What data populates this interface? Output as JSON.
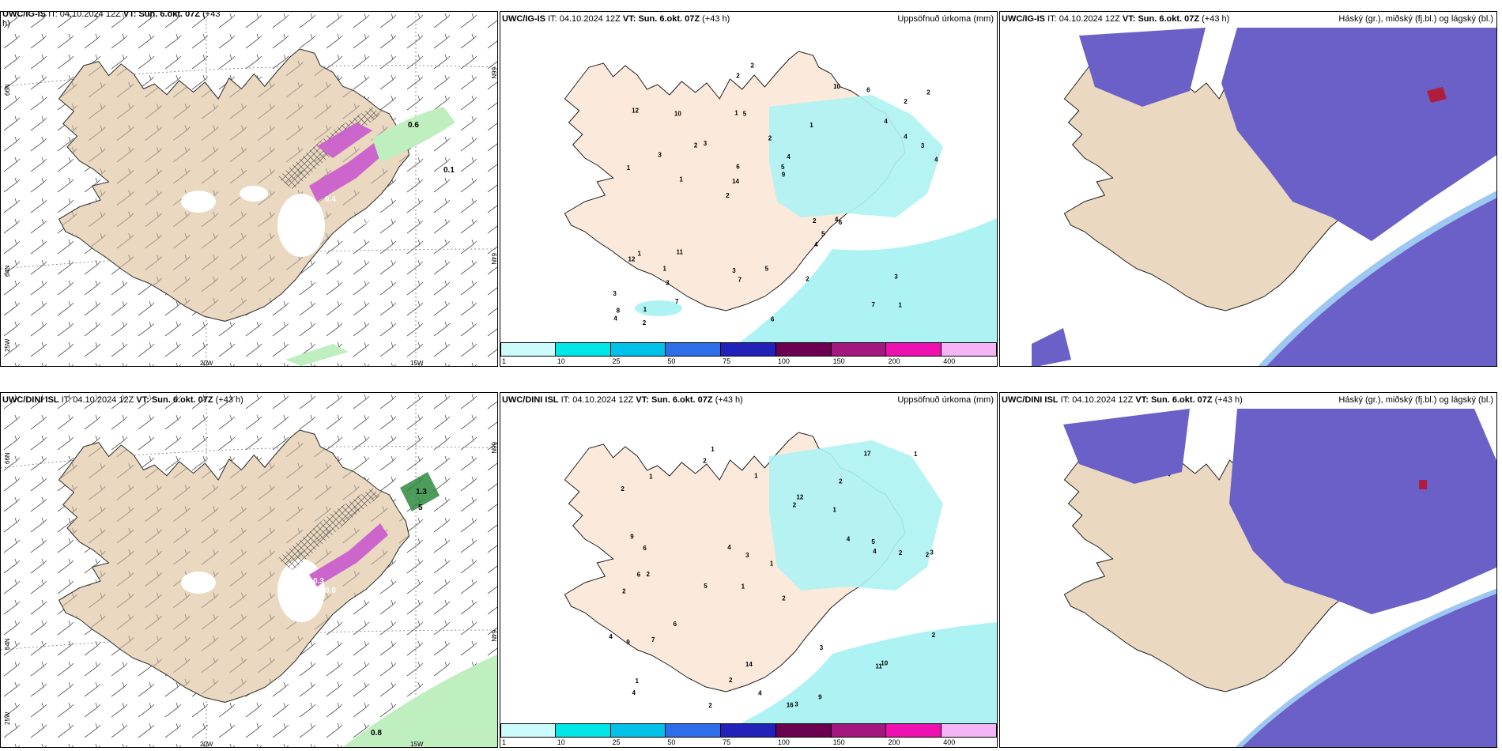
{
  "colors": {
    "land": "#ead8c0",
    "land_light": "#fbeadb",
    "precip_cyan": "#aef3f3",
    "cloud_high": "#6a60c8",
    "cloud_mid": "#4d7fe3",
    "cloud_low": "#9ec8f2",
    "purple": "#cc66cc",
    "green": "#bfeebf"
  },
  "colorbar": {
    "colors": [
      "#ccfbfb",
      "#00e5e5",
      "#00c2e8",
      "#2e6ee8",
      "#2222bb",
      "#6b0050",
      "#a3177e",
      "#ee10b0",
      "#f5b4f5"
    ],
    "ticks": [
      "1",
      "10",
      "25",
      "50",
      "75",
      "100",
      "150",
      "200",
      "400"
    ]
  },
  "panels": {
    "ig_wind": {
      "model": "UWC/IG-IS",
      "it_label": "IT:",
      "it_value": "04.10.2024 12Z",
      "vt_label": "VT: Sun. 6.okt. 07Z",
      "lead": "(+43",
      "lead2": "h)",
      "labels": [
        {
          "t": "0.6",
          "c": "#000"
        },
        {
          "t": "0.4",
          "c": "#fff"
        },
        {
          "t": "0.4",
          "c": "#fff"
        },
        {
          "t": "0.1",
          "c": "#000"
        }
      ],
      "axis": {
        "lat66": "66N",
        "lat64": "64N",
        "lat66r": "66N",
        "lat64r": "64N",
        "lon25": "25W",
        "lon20": "20W",
        "lon15": "15W"
      }
    },
    "ig_precip": {
      "model": "UWC/IG-IS",
      "it_label": "IT:",
      "it_value": "04.10.2024 12Z",
      "vt_label": "VT: Sun. 6.okt. 07Z",
      "lead": "(+43 h)",
      "right_title": "Uppsöfnuð úrkoma (mm)",
      "numbers": [
        "1",
        "1",
        "2",
        "2",
        "1",
        "1",
        "1",
        "2",
        "1",
        "3",
        "3",
        "3",
        "5",
        "4",
        "6",
        "12",
        "2",
        "4",
        "2",
        "4",
        "14",
        "3",
        "6",
        "10",
        "10",
        "11",
        "7",
        "3",
        "4",
        "6",
        "2",
        "3",
        "4",
        "7",
        "3",
        "5",
        "8",
        "7",
        "9",
        "12",
        "4",
        "2",
        "5",
        "2",
        "1",
        "2",
        "4",
        "5",
        "6",
        "2",
        "1"
      ]
    },
    "ig_cloud": {
      "model": "UWC/IG-IS",
      "it_label": "IT:",
      "it_value": "04.10.2024 12Z",
      "vt_label": "VT: Sun. 6.okt. 07Z",
      "lead": "(+43 h)",
      "right_title": "Háský (gr.), miðský (fj.bl.) og lágský (bl.)"
    },
    "dini_wind": {
      "model": "UWC/DINI ISL",
      "it_label": "IT:",
      "it_value": "04.10.2024 12Z",
      "vt_label": "VT: Sun. 6.okt. 07Z",
      "lead": "(+43 h)",
      "labels": [
        {
          "t": "1.3",
          "c": "#000"
        },
        {
          "t": "5",
          "c": "#000"
        },
        {
          "t": "0.3",
          "c": "#fff"
        },
        {
          "t": "0.6",
          "c": "#fff"
        },
        {
          "t": "0.8",
          "c": "#000"
        }
      ],
      "axis": {
        "lat66": "66N",
        "lat64": "64N",
        "lat66r": "66N",
        "lat64r": "64N",
        "lon25": "25W",
        "lon20": "20W",
        "lon15": "15W"
      }
    },
    "dini_precip": {
      "model": "UWC/DINI ISL",
      "it_label": "IT:",
      "it_value": "04.10.2024 12Z",
      "vt_label": "VT: Sun. 6.okt. 07Z",
      "lead": "(+43 h)",
      "right_title": "Uppsöfnuð úrkoma (mm)",
      "numbers": [
        "1",
        "2",
        "2",
        "1",
        "2",
        "2",
        "2",
        "1",
        "2",
        "2",
        "1",
        "4",
        "2",
        "5",
        "16",
        "3",
        "14",
        "17",
        "4",
        "6",
        "6",
        "6",
        "3",
        "2",
        "4",
        "9",
        "3",
        "4",
        "10",
        "9",
        "11",
        "12",
        "7",
        "4",
        "3",
        "2",
        "5",
        "2",
        "1",
        "1",
        "1",
        "2",
        "9",
        "1",
        "4"
      ]
    },
    "dini_cloud": {
      "model": "UWC/DINI ISL",
      "it_label": "IT:",
      "it_value": "04.10.2024 12Z",
      "vt_label": "VT: Sun. 6.okt. 07Z",
      "lead": "(+43 h)",
      "right_title": "Háský (gr.), miðský (fj.bl.) og lágský (bl.)"
    }
  }
}
